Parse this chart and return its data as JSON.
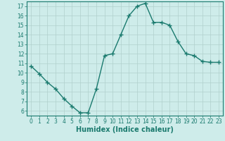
{
  "x": [
    0,
    1,
    2,
    3,
    4,
    5,
    6,
    7,
    8,
    9,
    10,
    11,
    12,
    13,
    14,
    15,
    16,
    17,
    18,
    19,
    20,
    21,
    22,
    23
  ],
  "y": [
    10.7,
    9.9,
    9.0,
    8.3,
    7.3,
    6.5,
    5.8,
    5.8,
    8.3,
    11.8,
    12.0,
    14.0,
    16.0,
    17.0,
    17.3,
    15.3,
    15.3,
    15.0,
    13.3,
    12.0,
    11.8,
    11.2,
    11.1,
    11.1
  ],
  "line_color": "#1a7a6e",
  "marker": "+",
  "marker_size": 4,
  "background_color": "#ceecea",
  "grid_color": "#b0d0cc",
  "xlabel": "Humidex (Indice chaleur)",
  "xlim": [
    -0.5,
    23.5
  ],
  "ylim": [
    5.5,
    17.5
  ],
  "yticks": [
    6,
    7,
    8,
    9,
    10,
    11,
    12,
    13,
    14,
    15,
    16,
    17
  ],
  "xticks": [
    0,
    1,
    2,
    3,
    4,
    5,
    6,
    7,
    8,
    9,
    10,
    11,
    12,
    13,
    14,
    15,
    16,
    17,
    18,
    19,
    20,
    21,
    22,
    23
  ],
  "tick_fontsize": 5.5,
  "xlabel_fontsize": 7,
  "line_width": 1.0
}
